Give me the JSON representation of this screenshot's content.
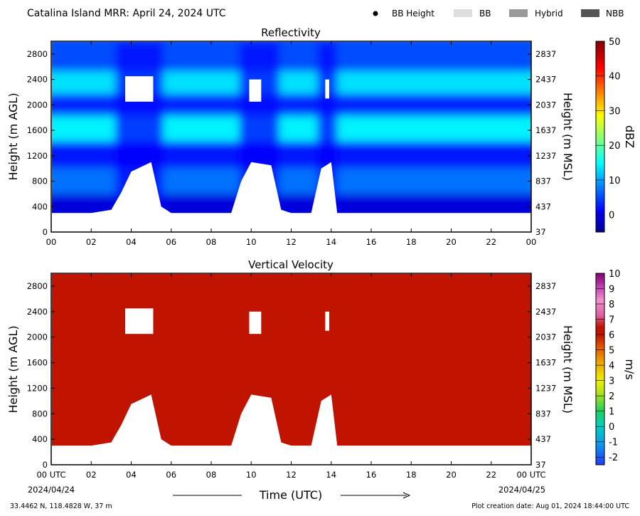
{
  "header": {
    "title": "Catalina Island MRR:  April 24, 2024 UTC",
    "legend": [
      {
        "label": "BB Height",
        "kind": "dot",
        "color": "#000000"
      },
      {
        "label": "BB",
        "kind": "swatch",
        "color": "#dddddd"
      },
      {
        "label": "Hybrid",
        "kind": "swatch",
        "color": "#999999"
      },
      {
        "label": "NBB",
        "kind": "swatch",
        "color": "#555555"
      }
    ]
  },
  "chart_data": [
    {
      "type": "heatmap",
      "title": "Reflectivity",
      "ylabel": "Height (m AGL)",
      "ylabel_right": "Height (m MSL)",
      "xlim": [
        0,
        24
      ],
      "ylim": [
        0,
        3000
      ],
      "x_tick_labels": [
        "00",
        "02",
        "04",
        "06",
        "08",
        "10",
        "12",
        "14",
        "16",
        "18",
        "20",
        "22",
        "00"
      ],
      "y_tick_values": [
        0,
        400,
        800,
        1200,
        1600,
        2000,
        2400,
        2800
      ],
      "y_tick_labels": [
        "0",
        "400",
        "800",
        "1200",
        "1600",
        "2000",
        "2400",
        "2800"
      ],
      "y_right_tick_labels": [
        "37",
        "437",
        "837",
        "1237",
        "1637",
        "2037",
        "2437",
        "2837"
      ],
      "colorbar": {
        "label": "dBZ",
        "range": [
          -5,
          50
        ],
        "ticks": [
          0,
          10,
          20,
          30,
          40,
          50
        ],
        "tick_labels": [
          "0",
          "10",
          "20",
          "30",
          "40",
          "50"
        ],
        "colormap": "jet"
      },
      "echo_base_m": [
        [
          0,
          300
        ],
        [
          1,
          300
        ],
        [
          2,
          300
        ],
        [
          3,
          350
        ],
        [
          3.5,
          620
        ],
        [
          4,
          950
        ],
        [
          5,
          1100
        ],
        [
          5.5,
          400
        ],
        [
          6,
          300
        ],
        [
          8,
          300
        ],
        [
          9,
          300
        ],
        [
          9.5,
          800
        ],
        [
          10,
          1100
        ],
        [
          11,
          1050
        ],
        [
          11.5,
          350
        ],
        [
          12,
          300
        ],
        [
          13,
          300
        ],
        [
          13.5,
          1000
        ],
        [
          14,
          1100
        ],
        [
          14.3,
          300
        ],
        [
          18,
          300
        ],
        [
          20,
          300
        ],
        [
          22,
          300
        ],
        [
          24,
          300
        ]
      ],
      "echo_top_m": 3000,
      "gaps": [
        {
          "x": [
            3.7,
            5.1
          ],
          "y": [
            2050,
            2450
          ]
        },
        {
          "x": [
            9.9,
            10.5
          ],
          "y": [
            2050,
            2400
          ]
        },
        {
          "x": [
            13.7,
            13.9
          ],
          "y": [
            2100,
            2400
          ]
        }
      ],
      "layers": [
        {
          "height_m": 2700,
          "dbz": 6
        },
        {
          "height_m": 2350,
          "dbz": 14
        },
        {
          "height_m": 2000,
          "dbz": 4
        },
        {
          "height_m": 1650,
          "dbz": 15
        },
        {
          "height_m": 1200,
          "dbz": 3
        },
        {
          "height_m": 800,
          "dbz": 8
        },
        {
          "height_m": 400,
          "dbz": 0
        }
      ]
    },
    {
      "type": "heatmap",
      "title": "Vertical Velocity",
      "ylabel": "Height (m AGL)",
      "ylabel_right": "Height (m MSL)",
      "xlabel": "Time (UTC)",
      "xlim": [
        0,
        24
      ],
      "ylim": [
        0,
        3000
      ],
      "x_tick_labels": [
        "00 UTC",
        "02",
        "04",
        "06",
        "08",
        "10",
        "12",
        "14",
        "16",
        "18",
        "20",
        "22",
        "00 UTC"
      ],
      "x_date_start": "2024/04/24",
      "x_date_end": "2024/04/25",
      "y_tick_values": [
        0,
        400,
        800,
        1200,
        1600,
        2000,
        2400,
        2800
      ],
      "y_tick_labels": [
        "0",
        "400",
        "800",
        "1200",
        "1600",
        "2000",
        "2400",
        "2800"
      ],
      "y_right_tick_labels": [
        "37",
        "437",
        "837",
        "1237",
        "1637",
        "2037",
        "2437",
        "2837"
      ],
      "fill_value_ms": 6,
      "colorbar": {
        "label": "m/s",
        "range": [
          -2.5,
          10
        ],
        "ticks": [
          -2,
          -1,
          0,
          1,
          2,
          3,
          4,
          5,
          6,
          7,
          8,
          9,
          10
        ],
        "tick_labels": [
          "-2",
          "-1",
          "0",
          "1",
          "2",
          "3",
          "4",
          "5",
          "6",
          "7",
          "8",
          "9",
          "10"
        ]
      }
    }
  ],
  "footer": {
    "location": "33.4462 N, 118.4828 W, 37 m",
    "created": "Plot creation date: Aug 01, 2024 18:44:00 UTC"
  },
  "colors": {
    "velocity_fill": "#c01300",
    "axis": "#000000",
    "background": "#ffffff"
  }
}
